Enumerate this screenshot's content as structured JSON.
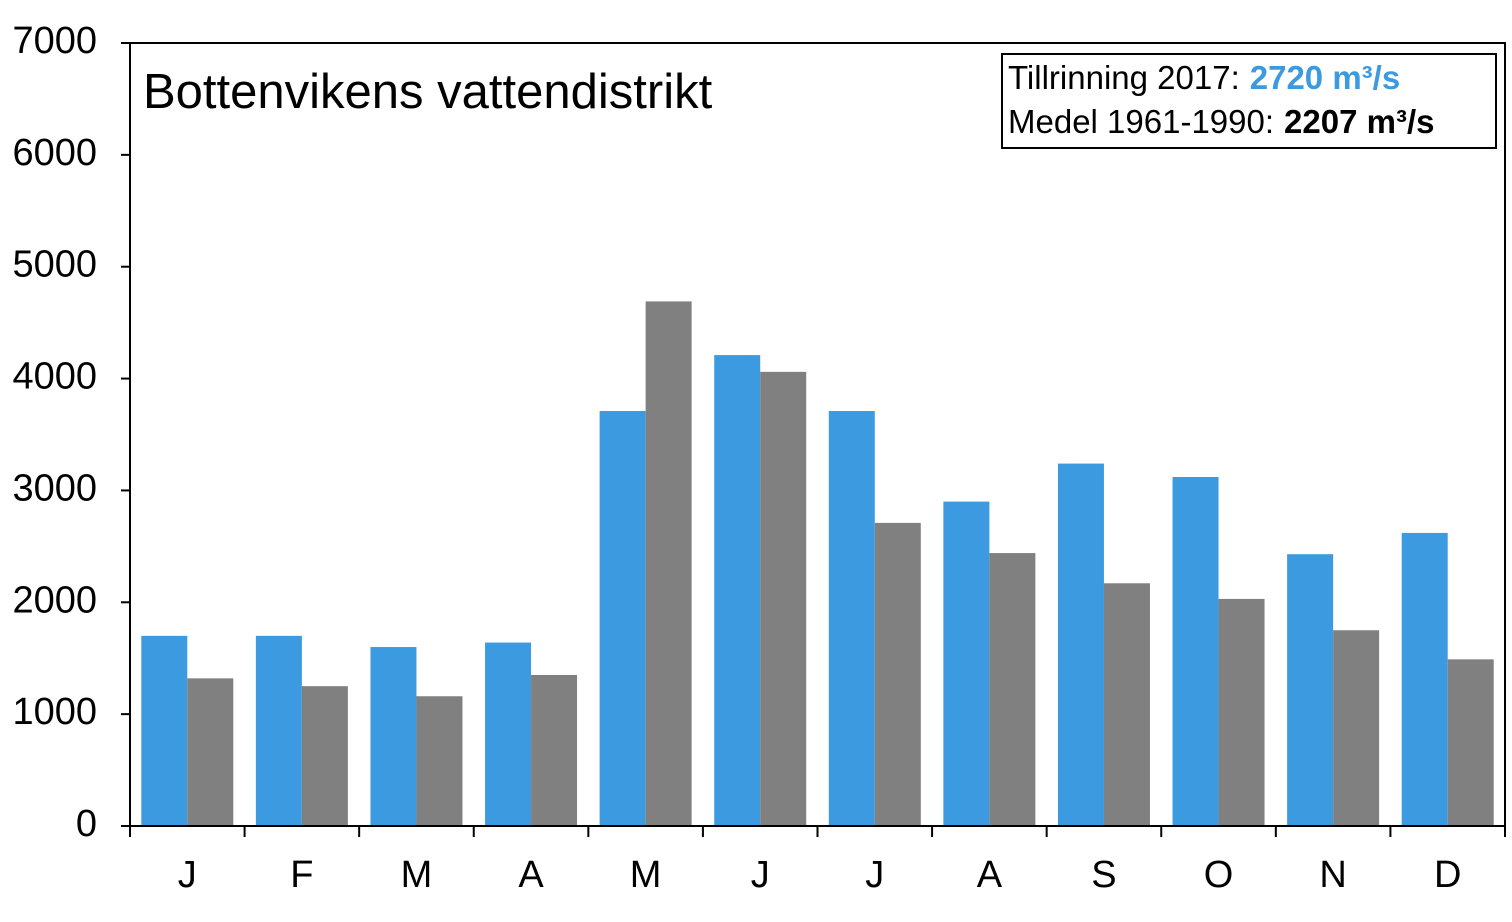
{
  "chart_data": {
    "type": "bar",
    "title": "Bottenvikens vattendistrikt",
    "categories": [
      "J",
      "F",
      "M",
      "A",
      "M",
      "J",
      "J",
      "A",
      "S",
      "O",
      "N",
      "D"
    ],
    "series": [
      {
        "name": "Tillrinning 2017:",
        "color": "#3c9be0",
        "mean": 2720,
        "mean_label": "2720 m³/s",
        "values": [
          1700,
          1700,
          1600,
          1640,
          3710,
          4210,
          3710,
          2900,
          3240,
          3120,
          2430,
          2620
        ]
      },
      {
        "name": "Medel 1961-1990:",
        "color": "#808080",
        "mean": 2207,
        "mean_label": "2207 m³/s",
        "values": [
          1320,
          1250,
          1160,
          1350,
          4690,
          4060,
          2710,
          2440,
          2170,
          2030,
          1750,
          1490
        ]
      }
    ],
    "ylim": [
      0,
      7000
    ],
    "yticks": [
      0,
      1000,
      2000,
      3000,
      4000,
      5000,
      6000,
      7000
    ],
    "grid": false
  }
}
